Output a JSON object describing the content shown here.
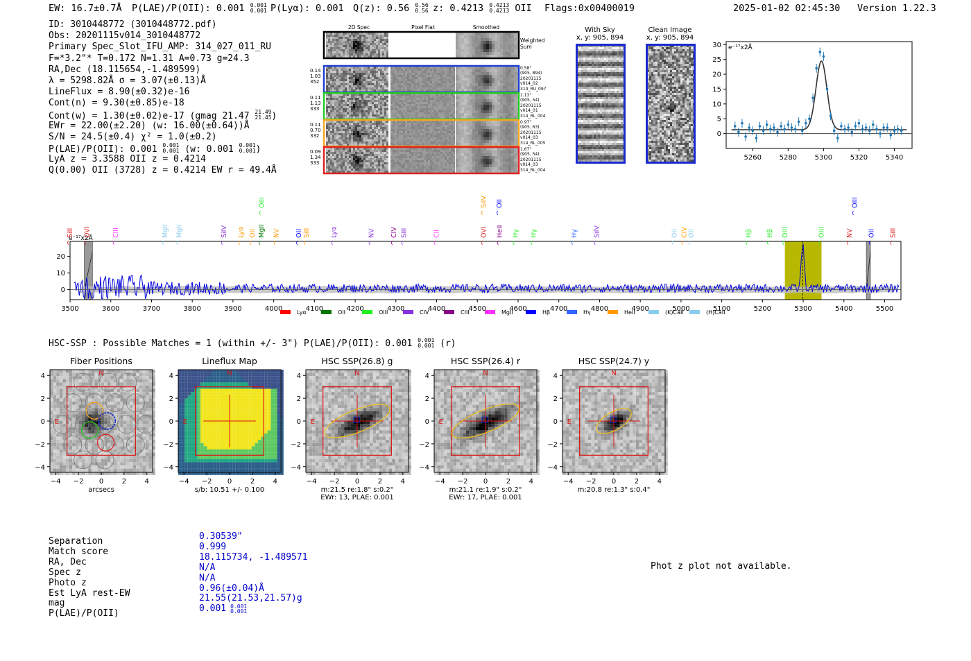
{
  "header": {
    "ew": "EW: 16.7±0.7Å",
    "plae_label": "P(LAE)/P(OII): 0.001",
    "plae_frac": [
      "0.001",
      "0.001"
    ],
    "plya": "P(Lyα): 0.001",
    "qz_label": "Q(z): 0.56",
    "qz_frac": [
      "0.56",
      "0.56"
    ],
    "z_label": "z: 0.4213",
    "z_frac": [
      "0.4213",
      "0.4213"
    ],
    "z_line": "OII",
    "flags": "Flags:0x00400019",
    "timestamp": "2025-01-02 02:45:30",
    "version": "Version 1.22.3"
  },
  "info": {
    "id": "ID: 3010448772 (3010448772.pdf)",
    "obs": "Obs: 20201115v014_3010448772",
    "primary": "Primary Spec_Slot_IFU_AMP: 314_027_011_RU",
    "fwhm": "F=*3.2\"*  T=0.172  N=1.31  A=0.73  g=24.3",
    "radec": "RA,Dec (18.115654,-1.489599)",
    "lambda": "λ = 5298.82Å  σ = 3.07(±0.13)Å",
    "lineflux": "LineFlux = 8.90(±0.32)e-16",
    "contn": "Cont(n) = 9.30(±0.85)e-18",
    "contw": "Cont(w) = 1.30(±0.02)e-17 (gmag 21.47",
    "contw_frac": [
      "21.49",
      "21.45"
    ],
    "contw_end": ")",
    "ewr": "EWr = 22.00(±2.20) (w: 16.00(±0.64))Å",
    "sn": "S/N = 24.5(±0.4)  χ² = 1.0(±0.2)",
    "plae_a": "P(LAE)/P(OII): 0.001",
    "plae_a_frac": [
      "0.001",
      "0.001"
    ],
    "plae_b": " (w: 0.001",
    "plae_b_frac": [
      "0.001",
      "0.001"
    ],
    "plae_end": ")",
    "lya": "LyA z = 3.3588  OII z = 0.4214",
    "q": "Q(0.00) OII (3728) z = 0.4214  EW r = 49.4Å"
  },
  "cutouts": {
    "col_titles": [
      "2D Spec",
      "Pixel Flat",
      "Smoothed"
    ],
    "weighted_label": "Weighted Sum",
    "rows": [
      {
        "left": [
          "0.14",
          "1.03",
          "352"
        ],
        "right": [
          "0.58\"",
          "(905, 894)",
          "20201115",
          "v014_02",
          "314_RU_097"
        ],
        "color": "#1f3fd0"
      },
      {
        "left": [
          "0.11",
          "1.13",
          "333"
        ],
        "right": [
          "1.13\"",
          "(905, 54)",
          "20201115",
          "v014_01",
          "314_RL_004"
        ],
        "color": "#22cc22"
      },
      {
        "left": [
          "0.11",
          "0.70",
          "332"
        ],
        "right": [
          "0.97\"",
          "(905, 63)",
          "20201115",
          "v014_03",
          "314_RL_005"
        ],
        "color": "#f5a623"
      },
      {
        "left": [
          "0.09",
          "1.34",
          "333"
        ],
        "right": [
          "1.67\"",
          "(905, 54)",
          "20201115",
          "v014_03",
          "314_RL_004"
        ],
        "color": "#e02020"
      }
    ]
  },
  "sky_panels": [
    {
      "title": "With Sky",
      "sub": "x, y: 905, 894"
    },
    {
      "title": "Clean Image",
      "sub": "x, y: 905, 894"
    }
  ],
  "zoom_chart": {
    "ylabel": "e⁻¹⁷x2Å"
  },
  "full_chart": {
    "ylabel": "e⁻¹⁷x2Å"
  },
  "legend": [
    {
      "label": "Lyα",
      "color": "#ff0000"
    },
    {
      "label": "OII",
      "color": "#007700"
    },
    {
      "label": "OIII",
      "color": "#22ee22"
    },
    {
      "label": "CIV",
      "color": "#8833dd"
    },
    {
      "label": "CIII",
      "color": "#880088"
    },
    {
      "label": "MgII",
      "color": "#ff33ff"
    },
    {
      "label": "Hβ",
      "color": "#0000ff"
    },
    {
      "label": "Hγ",
      "color": "#3366ff"
    },
    {
      "label": "HeII",
      "color": "#ff9900"
    },
    {
      "label": "(K)CaII",
      "color": "#88ccee"
    },
    {
      "label": "(H)CaII",
      "color": "#88ccee"
    }
  ],
  "hsc": {
    "line_a": "HSC-SSP : Possible Matches = 1 (within +/- 3\")  P(LAE)/P(OII): 0.001",
    "line_frac": [
      "0.001",
      "0.001"
    ],
    "line_b": " (r)"
  },
  "image_panels": [
    {
      "title": "Fiber Positions",
      "cap1": "arcsecs",
      "cap2": ""
    },
    {
      "title": "Lineflux Map",
      "cap1": "s/b: 10.51 +/- 0.100",
      "cap2": ""
    },
    {
      "title": "HSC SSP(26.8) g",
      "cap1": "m:21.5  re:1.8\"  s:0.2\"",
      "cap2": "EWr: 13, PLAE: 0.001"
    },
    {
      "title": "HSC SSP(26.4) r",
      "cap1": "m:21.1  re:1.9\"  s:0.2\"",
      "cap2": "EWr: 17, PLAE: 0.001"
    },
    {
      "title": "HSC SSP(24.7) y",
      "cap1": "m:20.8  re:1.3\"  s:0.4\"",
      "cap2": ""
    }
  ],
  "image_axis": {
    "ticks": [
      "−4",
      "−2",
      "0",
      "2",
      "4"
    ],
    "north": "N",
    "east": "E"
  },
  "match_table": {
    "labels": [
      "Separation",
      "Match score",
      "RA, Dec",
      "Spec z",
      "Photo z",
      "Est LyA rest-EW",
      "mag",
      "P(LAE)/P(OII)"
    ],
    "values": [
      "0.30539\"",
      "0.999",
      "18.115734, -1.489571",
      "N/A",
      "N/A",
      "0.96(±0.04)Å",
      "21.55(21.53,21.57)g",
      "0.001"
    ],
    "last_frac": [
      "0.001",
      "0.001"
    ]
  },
  "phot_z": "Phot z plot not available.",
  "chart_data": [
    {
      "type": "line",
      "name": "zoom",
      "xlim": [
        5245,
        5350
      ],
      "ylim": [
        -5,
        31
      ],
      "xticks": [
        5260,
        5280,
        5300,
        5320,
        5340
      ],
      "yticks": [
        0,
        5,
        10,
        15,
        20,
        25,
        30
      ],
      "points": [
        [
          5250,
          2.5
        ],
        [
          5252,
          0.5
        ],
        [
          5254,
          3.5
        ],
        [
          5256,
          -1
        ],
        [
          5258,
          2
        ],
        [
          5260,
          1
        ],
        [
          5262,
          -1.5
        ],
        [
          5264,
          2.5
        ],
        [
          5266,
          1
        ],
        [
          5268,
          3
        ],
        [
          5270,
          1.5
        ],
        [
          5272,
          2
        ],
        [
          5274,
          0.5
        ],
        [
          5276,
          2.5
        ],
        [
          5278,
          1.5
        ],
        [
          5280,
          3
        ],
        [
          5282,
          2
        ],
        [
          5284,
          1.5
        ],
        [
          5286,
          4
        ],
        [
          5288,
          1
        ],
        [
          5290,
          3.5
        ],
        [
          5292,
          5
        ],
        [
          5294,
          12
        ],
        [
          5296,
          22
        ],
        [
          5298,
          27.5
        ],
        [
          5300,
          26
        ],
        [
          5302,
          15
        ],
        [
          5304,
          6
        ],
        [
          5306,
          1
        ],
        [
          5308,
          -1.5
        ],
        [
          5310,
          2.5
        ],
        [
          5312,
          1.5
        ],
        [
          5314,
          2
        ],
        [
          5316,
          0.5
        ],
        [
          5318,
          2.5
        ],
        [
          5320,
          3.5
        ],
        [
          5322,
          1.5
        ],
        [
          5324,
          2
        ],
        [
          5326,
          1
        ],
        [
          5328,
          3
        ],
        [
          5330,
          1.5
        ],
        [
          5332,
          0
        ],
        [
          5334,
          2
        ],
        [
          5336,
          2
        ],
        [
          5338,
          -0.5
        ],
        [
          5340,
          1
        ],
        [
          5342,
          1.5
        ],
        [
          5344,
          1
        ]
      ],
      "fit": {
        "amp": 23.2,
        "mu": 5298.8,
        "sigma": 3.07,
        "cont": 1.3
      }
    },
    {
      "type": "line",
      "name": "full_spectrum",
      "xlim": [
        3500,
        5540
      ],
      "ylim": [
        -6,
        29
      ],
      "xticks": [
        3500,
        3600,
        3700,
        3800,
        3900,
        4000,
        4100,
        4200,
        4300,
        4400,
        4500,
        4600,
        4700,
        4800,
        4900,
        5000,
        5100,
        5200,
        5300,
        5400,
        5500
      ],
      "yticks": [
        0,
        10,
        20
      ],
      "highlight": [
        5255,
        5345
      ],
      "masked": [
        [
          3535,
          3555
        ],
        [
          5455,
          5465
        ]
      ],
      "peak": {
        "x": 5298.8,
        "y": 27
      },
      "lines": [
        {
          "label": "SiII",
          "x": 3500,
          "color": "#dd2222"
        },
        {
          "label": "OVI",
          "x": 3542,
          "color": "#dd2222"
        },
        {
          "label": "CIII",
          "x": 3612,
          "color": "#ff33ff"
        },
        {
          "label": "MgII",
          "x": 3733,
          "color": "#88ccee"
        },
        {
          "label": "MgII",
          "x": 3768,
          "color": "#88ccee"
        },
        {
          "label": "SiIV",
          "x": 3878,
          "color": "#8833dd"
        },
        {
          "label": "Lyα",
          "x": 3920,
          "color": "#ff9900"
        },
        {
          "label": "OII",
          "x": 3948,
          "color": "#ff9900"
        },
        {
          "label": "MgII",
          "x": 3970,
          "color": "#007700"
        },
        {
          "label": "OIII",
          "x": 3971,
          "color": "#22ee22",
          "high": true
        },
        {
          "label": "NV",
          "x": 4007,
          "color": "#ff9900"
        },
        {
          "label": "OII",
          "x": 4062,
          "color": "#0000ff"
        },
        {
          "label": "SiII",
          "x": 4081,
          "color": "#ff9900"
        },
        {
          "label": "Lyα",
          "x": 4148,
          "color": "#8833dd"
        },
        {
          "label": "NV",
          "x": 4240,
          "color": "#8833dd"
        },
        {
          "label": "CIV",
          "x": 4295,
          "color": "#880088"
        },
        {
          "label": "SiII",
          "x": 4320,
          "color": "#8833dd"
        },
        {
          "label": "CII",
          "x": 4400,
          "color": "#ff33ff"
        },
        {
          "label": "OVI",
          "x": 4516,
          "color": "#dd2222"
        },
        {
          "label": "SiIV",
          "x": 4516,
          "color": "#ff9900",
          "high": true
        },
        {
          "label": "OII",
          "x": 4554,
          "color": "#0000ff",
          "high": true
        },
        {
          "label": "HeII",
          "x": 4555,
          "color": "#880088"
        },
        {
          "label": "Hγ",
          "x": 4594,
          "color": "#22ee22"
        },
        {
          "label": "Hγ",
          "x": 4638,
          "color": "#22ee22"
        },
        {
          "label": "Hγ",
          "x": 4738,
          "color": "#3366ff"
        },
        {
          "label": "SiIV",
          "x": 4793,
          "color": "#8833dd"
        },
        {
          "label": "OII",
          "x": 4984,
          "color": "#88ccee"
        },
        {
          "label": "CIV",
          "x": 5008,
          "color": "#ff9900"
        },
        {
          "label": "OII",
          "x": 5025,
          "color": "#88ccee"
        },
        {
          "label": "Hβ",
          "x": 5166,
          "color": "#22ee22"
        },
        {
          "label": "Hβ",
          "x": 5218,
          "color": "#22ee22"
        },
        {
          "label": "OIII",
          "x": 5256,
          "color": "#22ee22"
        },
        {
          "label": "OIII",
          "x": 5345,
          "color": "#22ee22"
        },
        {
          "label": "NV",
          "x": 5414,
          "color": "#dd2222"
        },
        {
          "label": "OIII",
          "x": 5427,
          "color": "#0000ff",
          "high": true
        },
        {
          "label": "OII",
          "x": 5468,
          "color": "#0000ff"
        },
        {
          "label": "SiII",
          "x": 5520,
          "color": "#dd2222"
        }
      ]
    }
  ]
}
